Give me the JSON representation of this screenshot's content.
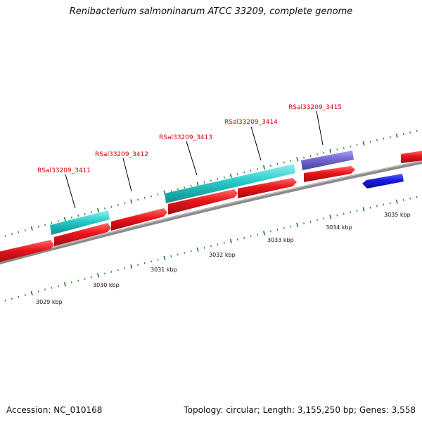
{
  "title": "Renibacterium salmoninarum ATCC 33209, complete genome",
  "footer": {
    "accession": "Accession: NC_010168",
    "summary": "Topology: circular; Length: 3,155,250 bp; Genes: 3,558"
  },
  "colors": {
    "forward_cds": "#e8151b",
    "reverse_cds": "#1a1ae0",
    "feature_cyan": "#27c9c9",
    "feature_purple": "#7466d0",
    "backbone": "#8a8a8a",
    "ticks": "#1e7a1e",
    "label": "#d10000"
  },
  "scale": {
    "unit": "kbp",
    "labels": [
      "3029 kbp",
      "3030 kbp",
      "3031 kbp",
      "3032 kbp",
      "3033 kbp",
      "3034 kbp",
      "3035 kbp"
    ]
  },
  "gene_labels": [
    "RSal33209_3411",
    "RSal33209_3412",
    "RSal33209_3413",
    "RSal33209_3414",
    "RSal33209_3415"
  ]
}
